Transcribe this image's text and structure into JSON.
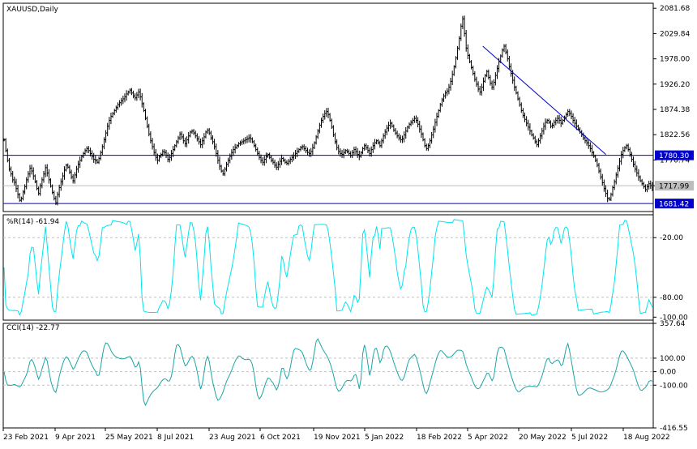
{
  "chart_data": [
    {
      "type": "candlestick",
      "symbol_label": "XAUUSD,Daily",
      "ylim": [
        1665,
        2092
      ],
      "y_ticks": [
        "2081.68",
        "2029.84",
        "1978.00",
        "1926.20",
        "1874.38",
        "1822.56",
        "1770.74",
        "1717.99"
      ],
      "horizontal_levels": [
        {
          "value": 1780.3,
          "label": "1780.30",
          "color": "#0000cc"
        },
        {
          "value": 1681.42,
          "label": "1681.42",
          "color": "#0000cc"
        },
        {
          "value": 1717.99,
          "label": "1717.99",
          "color": "#bdbdbd"
        }
      ],
      "trendline": {
        "from": {
          "date": "2022-04-07",
          "value": 2004
        },
        "to": {
          "date": "2022-07-22",
          "value": 1782
        },
        "color": "#0000cc"
      },
      "closes": [
        1812,
        1790,
        1770,
        1752,
        1742,
        1730,
        1725,
        1712,
        1700,
        1688,
        1692,
        1705,
        1716,
        1730,
        1742,
        1754,
        1748,
        1738,
        1726,
        1712,
        1702,
        1718,
        1730,
        1742,
        1755,
        1744,
        1730,
        1717,
        1704,
        1692,
        1683,
        1700,
        1714,
        1726,
        1738,
        1750,
        1760,
        1756,
        1746,
        1736,
        1728,
        1740,
        1752,
        1762,
        1770,
        1778,
        1784,
        1790,
        1794,
        1790,
        1784,
        1778,
        1772,
        1770,
        1766,
        1774,
        1786,
        1798,
        1812,
        1826,
        1840,
        1852,
        1860,
        1866,
        1872,
        1878,
        1884,
        1888,
        1892,
        1896,
        1900,
        1906,
        1910,
        1914,
        1908,
        1902,
        1898,
        1904,
        1910,
        1900,
        1886,
        1872,
        1856,
        1840,
        1824,
        1810,
        1798,
        1786,
        1776,
        1770,
        1778,
        1782,
        1788,
        1786,
        1780,
        1772,
        1776,
        1784,
        1792,
        1800,
        1808,
        1816,
        1824,
        1818,
        1810,
        1804,
        1812,
        1820,
        1828,
        1830,
        1826,
        1820,
        1814,
        1808,
        1802,
        1810,
        1818,
        1828,
        1832,
        1826,
        1816,
        1808,
        1798,
        1784,
        1770,
        1758,
        1748,
        1742,
        1752,
        1762,
        1770,
        1778,
        1786,
        1792,
        1796,
        1800,
        1804,
        1806,
        1808,
        1810,
        1812,
        1814,
        1816,
        1814,
        1808,
        1800,
        1792,
        1784,
        1776,
        1770,
        1766,
        1772,
        1778,
        1782,
        1776,
        1770,
        1766,
        1760,
        1756,
        1762,
        1768,
        1774,
        1770,
        1766,
        1764,
        1768,
        1772,
        1776,
        1780,
        1784,
        1788,
        1792,
        1796,
        1798,
        1794,
        1790,
        1786,
        1784,
        1788,
        1796,
        1806,
        1818,
        1830,
        1842,
        1852,
        1860,
        1866,
        1870,
        1864,
        1852,
        1838,
        1822,
        1808,
        1796,
        1788,
        1784,
        1782,
        1786,
        1790,
        1788,
        1784,
        1780,
        1786,
        1792,
        1788,
        1782,
        1778,
        1786,
        1794,
        1800,
        1796,
        1790,
        1784,
        1792,
        1800,
        1806,
        1810,
        1806,
        1800,
        1810,
        1820,
        1828,
        1836,
        1842,
        1846,
        1840,
        1832,
        1826,
        1820,
        1816,
        1812,
        1814,
        1822,
        1830,
        1838,
        1844,
        1848,
        1852,
        1856,
        1852,
        1844,
        1834,
        1824,
        1812,
        1800,
        1794,
        1800,
        1810,
        1822,
        1834,
        1848,
        1860,
        1872,
        1884,
        1894,
        1902,
        1908,
        1912,
        1920,
        1932,
        1946,
        1962,
        1980,
        2000,
        2020,
        2045,
        2060,
        2030,
        2000,
        1985,
        1972,
        1960,
        1948,
        1936,
        1926,
        1916,
        1910,
        1920,
        1932,
        1944,
        1952,
        1940,
        1928,
        1920,
        1930,
        1944,
        1958,
        1972,
        1984,
        1996,
        2004,
        1992,
        1978,
        1962,
        1948,
        1934,
        1920,
        1908,
        1896,
        1884,
        1872,
        1862,
        1854,
        1846,
        1838,
        1830,
        1822,
        1816,
        1808,
        1802,
        1810,
        1820,
        1830,
        1840,
        1848,
        1852,
        1848,
        1840,
        1842,
        1848,
        1852,
        1856,
        1852,
        1846,
        1852,
        1858,
        1864,
        1870,
        1866,
        1860,
        1852,
        1846,
        1840,
        1834,
        1828,
        1822,
        1816,
        1810,
        1806,
        1800,
        1794,
        1786,
        1778,
        1770,
        1760,
        1748,
        1736,
        1724,
        1712,
        1702,
        1692,
        1690,
        1700,
        1714,
        1726,
        1740,
        1754,
        1768,
        1782,
        1790,
        1796,
        1800,
        1792,
        1782,
        1772,
        1762,
        1752,
        1744,
        1736,
        1728,
        1722,
        1716,
        1710,
        1716,
        1722,
        1718,
        1714
      ],
      "panes": [
        {
          "title": "%R(14) -61.94",
          "indicator": "Williams %R",
          "period": 14,
          "last": -61.94,
          "ylim": [
            -103,
            3
          ],
          "levels": [
            -20,
            -80
          ],
          "y_ticks": [
            "-20.00",
            "-80.00",
            "-100.00"
          ],
          "color": "#00e5ee"
        },
        {
          "title": "CCI(14) -22.77",
          "indicator": "CCI",
          "period": 14,
          "last": -22.77,
          "ylim": [
            -416.55,
            357.64
          ],
          "levels": [
            100,
            0,
            -100
          ],
          "y_ticks": [
            "357.64",
            "100.00",
            "0.00",
            "-100.00",
            "-416.55"
          ],
          "color": "#1aa6a6"
        }
      ],
      "x_date_labels": [
        "23 Feb 2021",
        "9 Apr 2021",
        "25 May 2021",
        "8 Jul 2021",
        "23 Aug 2021",
        "6 Oct 2021",
        "19 Nov 2021",
        "5 Jan 2022",
        "18 Feb 2022",
        "5 Apr 2022",
        "20 May 2022",
        "5 Jul 2022",
        "18 Aug 2022"
      ]
    }
  ]
}
